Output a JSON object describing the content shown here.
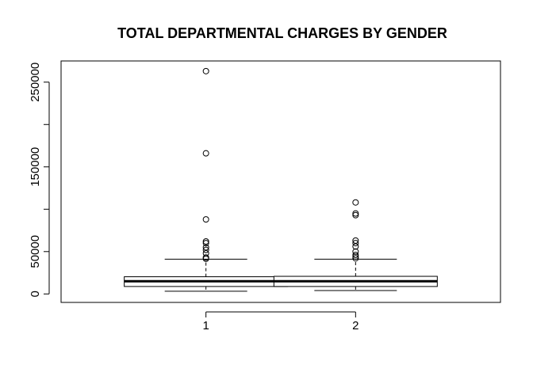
{
  "chart_data": {
    "type": "boxplot",
    "title": "TOTAL DEPARTMENTAL CHARGES BY GENDER",
    "xlabel": "",
    "ylabel": "",
    "categories": [
      "1",
      "2"
    ],
    "yticks": [
      0,
      50000,
      150000,
      250000
    ],
    "ytick_labels": [
      "0",
      "50000",
      "150000",
      "250000"
    ],
    "ylim": [
      -10000,
      275000
    ],
    "grid": false,
    "boxes": [
      {
        "category": "1",
        "whisker_low": 3200,
        "q1": 8800,
        "median": 15000,
        "q3": 20300,
        "whisker_high": 41000,
        "outliers": [
          263000,
          166000,
          88000,
          62000,
          60000,
          55000,
          52000,
          48000,
          43000,
          41500
        ]
      },
      {
        "category": "2",
        "whisker_low": 4000,
        "q1": 8800,
        "median": 15000,
        "q3": 20800,
        "whisker_high": 41000,
        "outliers": [
          108000,
          95000,
          93000,
          63000,
          60000,
          56000,
          50000,
          46000,
          44000,
          42000
        ]
      }
    ]
  }
}
